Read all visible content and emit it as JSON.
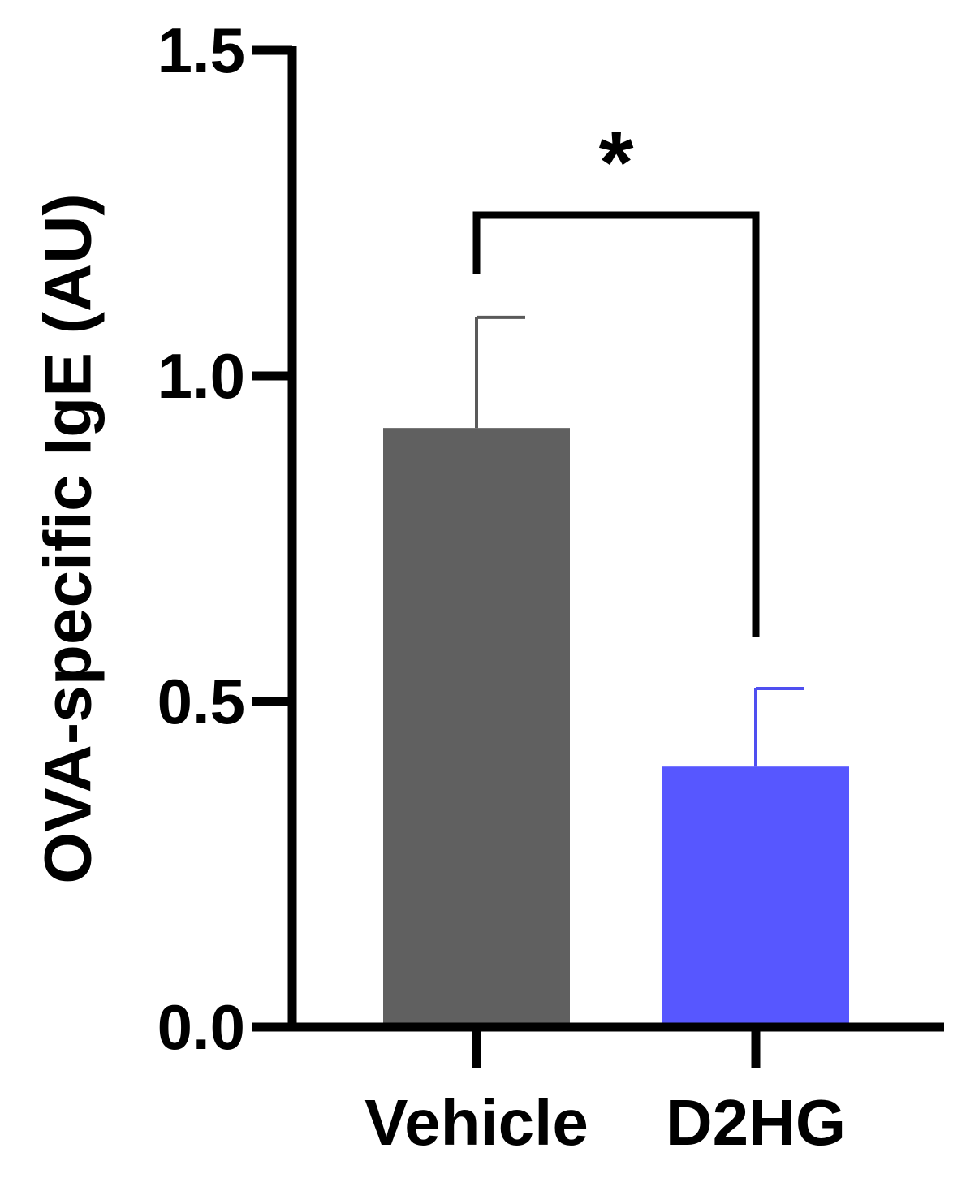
{
  "chart_data": {
    "type": "bar",
    "title": "",
    "xlabel": "",
    "ylabel": "OVA-specific IgE (AU)",
    "ylim": [
      0,
      1.5
    ],
    "yticks": [
      0.0,
      0.5,
      1.0,
      1.5
    ],
    "ytick_labels": [
      "0.0",
      "0.5",
      "1.0",
      "1.5"
    ],
    "grid": false,
    "categories": [
      "Vehicle",
      "D2HG"
    ],
    "values": [
      0.92,
      0.4
    ],
    "errors": [
      0.17,
      0.12
    ],
    "colors": [
      "#606060",
      "#5757ff"
    ],
    "errorbar_colors": [
      "#5a5a5a",
      "#4f4ff0"
    ],
    "annotations": [
      {
        "type": "significance",
        "text": "*",
        "between": [
          "Vehicle",
          "D2HG"
        ]
      }
    ]
  }
}
